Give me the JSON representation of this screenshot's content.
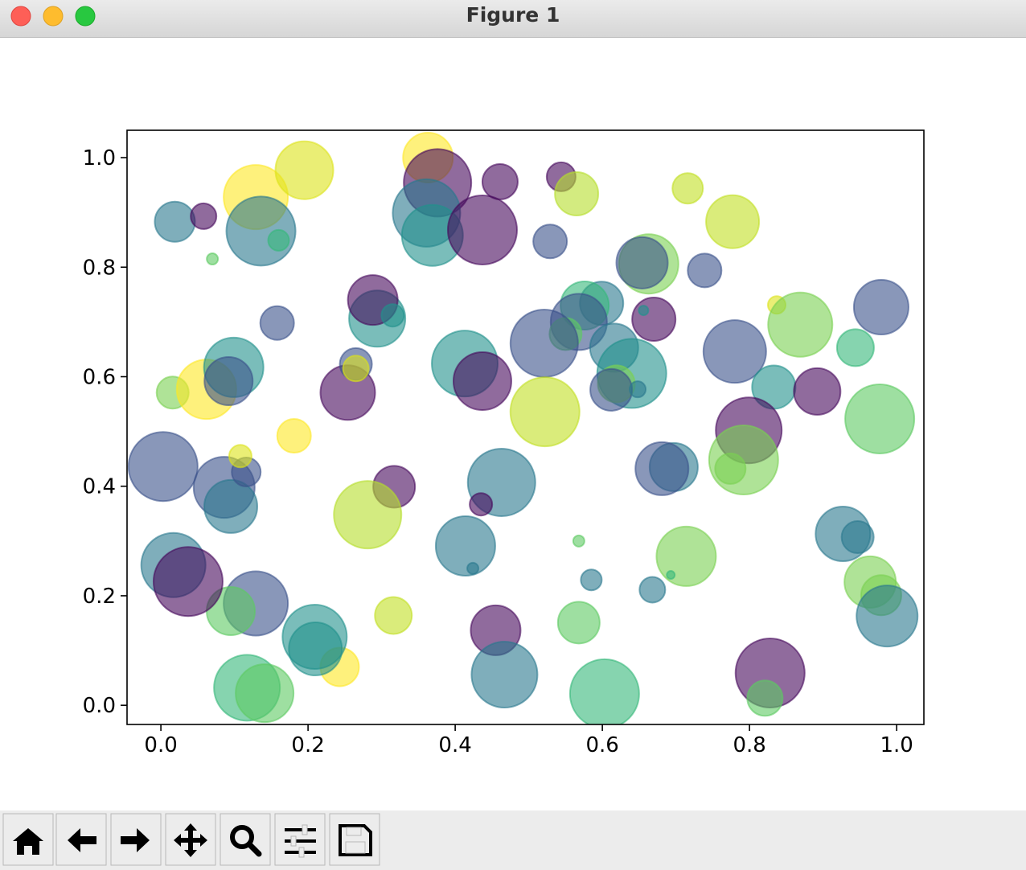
{
  "window": {
    "title": "Figure 1"
  },
  "chart_data": {
    "type": "scatter",
    "x": [
      0.019,
      0.058,
      0.129,
      0.136,
      0.16,
      0.07,
      0.195,
      0.363,
      0.376,
      0.361,
      0.369,
      0.437,
      0.461,
      0.544,
      0.565,
      0.529,
      0.716,
      0.777,
      0.663,
      0.654,
      0.739,
      0.837,
      0.869,
      0.979,
      0.944,
      0.78,
      0.833,
      0.892,
      0.799,
      0.792,
      0.774,
      0.977,
      0.697,
      0.681,
      0.67,
      0.656,
      0.599,
      0.576,
      0.568,
      0.55,
      0.521,
      0.616,
      0.64,
      0.619,
      0.612,
      0.648,
      0.522,
      0.413,
      0.437,
      0.463,
      0.435,
      0.414,
      0.424,
      0.568,
      0.585,
      0.668,
      0.714,
      0.693,
      0.568,
      0.455,
      0.467,
      0.603,
      0.828,
      0.821,
      0.927,
      0.947,
      0.964,
      0.979,
      0.987,
      0.316,
      0.243,
      0.209,
      0.21,
      0.117,
      0.141,
      0.129,
      0.095,
      0.017,
      0.037,
      0.003,
      0.086,
      0.095,
      0.116,
      0.108,
      0.317,
      0.281,
      0.181,
      0.016,
      0.062,
      0.099,
      0.092,
      0.254,
      0.265,
      0.265,
      0.294,
      0.288,
      0.315,
      0.158
    ],
    "y": [
      0.883,
      0.893,
      0.928,
      0.866,
      0.849,
      0.815,
      0.977,
      1.0,
      0.954,
      0.899,
      0.858,
      0.868,
      0.956,
      0.965,
      0.934,
      0.847,
      0.944,
      0.883,
      0.806,
      0.808,
      0.794,
      0.731,
      0.695,
      0.727,
      0.653,
      0.646,
      0.581,
      0.573,
      0.502,
      0.448,
      0.432,
      0.523,
      0.435,
      0.432,
      0.705,
      0.721,
      0.734,
      0.73,
      0.7,
      0.678,
      0.661,
      0.653,
      0.606,
      0.587,
      0.576,
      0.577,
      0.536,
      0.624,
      0.592,
      0.407,
      0.367,
      0.291,
      0.25,
      0.3,
      0.229,
      0.211,
      0.272,
      0.238,
      0.151,
      0.137,
      0.056,
      0.021,
      0.059,
      0.013,
      0.313,
      0.307,
      0.225,
      0.201,
      0.163,
      0.164,
      0.07,
      0.125,
      0.103,
      0.032,
      0.022,
      0.186,
      0.172,
      0.256,
      0.226,
      0.436,
      0.398,
      0.363,
      0.426,
      0.455,
      0.399,
      0.348,
      0.492,
      0.571,
      0.577,
      0.617,
      0.592,
      0.571,
      0.623,
      0.615,
      0.706,
      0.74,
      0.712,
      0.698
    ],
    "sizes": [
      25,
      16,
      40,
      43,
      13,
      7,
      36,
      31,
      42,
      42,
      38,
      43,
      22,
      18,
      27,
      21,
      19,
      33,
      37,
      32,
      21,
      11,
      40,
      34,
      23,
      39,
      27,
      29,
      41,
      43,
      19,
      43,
      30,
      33,
      27,
      6,
      27,
      30,
      35,
      20,
      42,
      30,
      43,
      23,
      26,
      10,
      43,
      41,
      36,
      42,
      14,
      37,
      7,
      7,
      13,
      16,
      37,
      5,
      26,
      31,
      41,
      43,
      43,
      22,
      34,
      20,
      32,
      25,
      38,
      23,
      24,
      40,
      33,
      41,
      36,
      40,
      30,
      40,
      43,
      43,
      38,
      33,
      18,
      14,
      26,
      42,
      21,
      20,
      37,
      37,
      30,
      34,
      20,
      16,
      35,
      31,
      14,
      21
    ],
    "colors": [
      "#2a788e",
      "#46085c",
      "#fde725",
      "#2a788e",
      "#35b779",
      "#5ec962",
      "#dce319",
      "#fde725",
      "#46085c",
      "#2a788e",
      "#21918c",
      "#46085c",
      "#46085c",
      "#46085c",
      "#b5de2b",
      "#3b528b",
      "#c2df23",
      "#c2df23",
      "#7ad151",
      "#3b528b",
      "#3b528b",
      "#dce319",
      "#7ad151",
      "#3b528b",
      "#35b779",
      "#3b528b",
      "#21918c",
      "#46085c",
      "#46085c",
      "#7ad151",
      "#7ad151",
      "#5ec962",
      "#2a788e",
      "#3b528b",
      "#46085c",
      "#21918c",
      "#2a788e",
      "#35b779",
      "#3b528b",
      "#5ec962",
      "#3b528b",
      "#2a788e",
      "#21918c",
      "#7ad151",
      "#3b528b",
      "#2a788e",
      "#c2df23",
      "#21918c",
      "#46085c",
      "#2a788e",
      "#46085c",
      "#2a788e",
      "#2a788e",
      "#5ec962",
      "#2a788e",
      "#2a788e",
      "#7ad151",
      "#35b779",
      "#5ec962",
      "#46085c",
      "#2a788e",
      "#35b779",
      "#46085c",
      "#5ec962",
      "#2a788e",
      "#2a788e",
      "#7ad151",
      "#7ad151",
      "#2a788e",
      "#c2df23",
      "#fde725",
      "#21918c",
      "#21918c",
      "#35b779",
      "#5ec962",
      "#3b528b",
      "#5ec962",
      "#2a788e",
      "#46085c",
      "#3b528b",
      "#3b528b",
      "#2a788e",
      "#3b528b",
      "#dce319",
      "#46085c",
      "#b5de2b",
      "#fde725",
      "#7ad151",
      "#fde725",
      "#21918c",
      "#3b528b",
      "#46085c",
      "#3b528b",
      "#dce319",
      "#21918c",
      "#46085c",
      "#21918c",
      "#3b528b"
    ],
    "xlim": [
      -0.046,
      1.037
    ],
    "ylim": [
      -0.035,
      1.05
    ],
    "xticks": [
      {
        "value": 0,
        "label": "0.0"
      },
      0.2,
      0.4,
      0.6,
      0.8,
      {
        "value": 1,
        "label": "1.0"
      }
    ],
    "yticks": [
      {
        "value": 0,
        "label": "0.0"
      },
      0.2,
      0.4,
      0.6,
      0.8,
      {
        "value": 1,
        "label": "1.0"
      }
    ]
  }
}
